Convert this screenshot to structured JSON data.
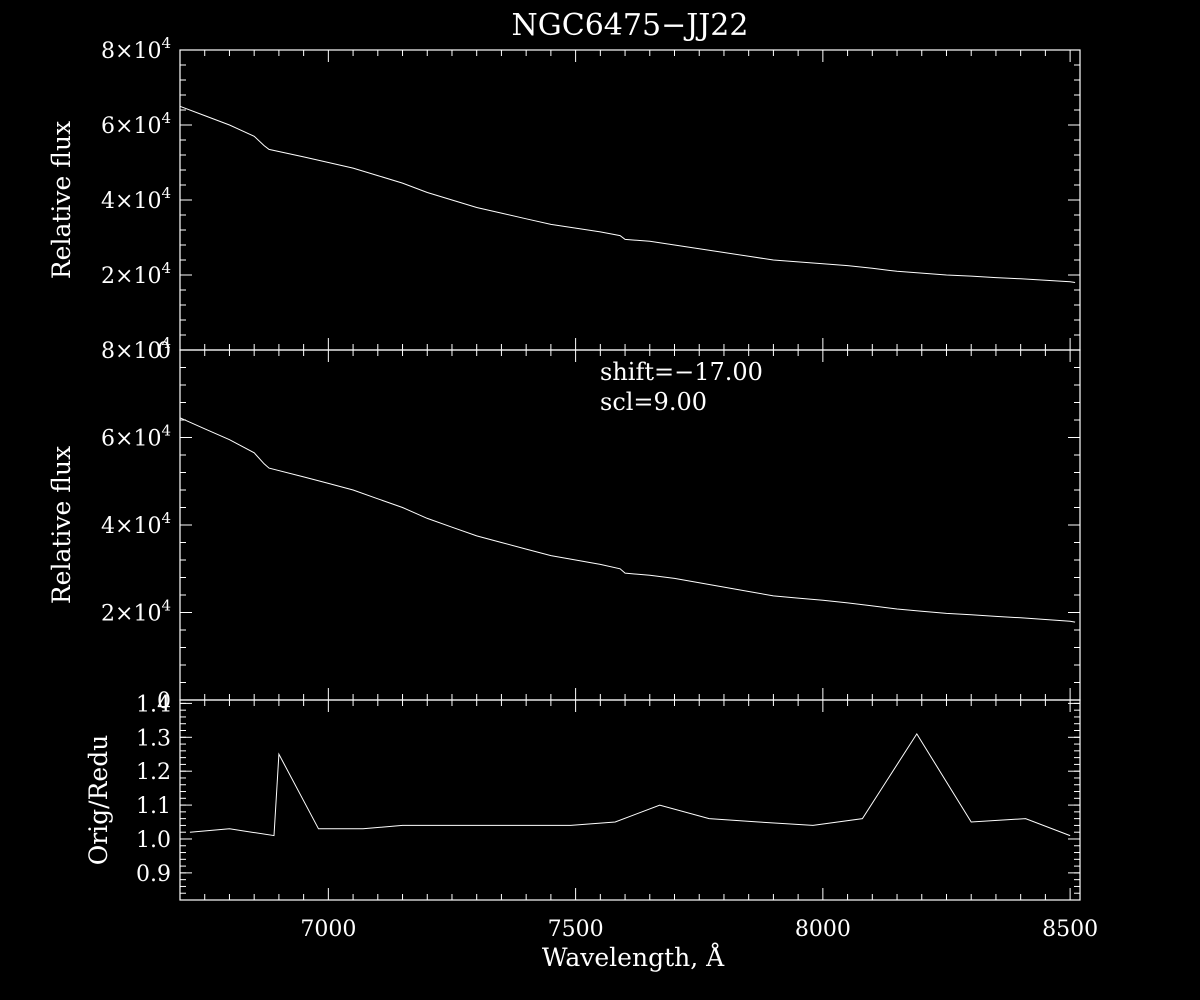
{
  "chart_data": {
    "title": "NGC6475−JJ22",
    "type": "line",
    "xlabel": "Wavelength, Å",
    "xlim": [
      6700,
      8520
    ],
    "x_ticks": [
      "7000",
      "7500",
      "8000",
      "8500"
    ],
    "x_tick_values": [
      7000,
      7500,
      8000,
      8500
    ],
    "panels": [
      {
        "name": "top",
        "ylabel": "Relative flux",
        "ylim": [
          0,
          80000
        ],
        "y_ticks": [
          {
            "value": 0,
            "mantissa": "0",
            "exp": ""
          },
          {
            "value": 20000,
            "mantissa": "2×10",
            "exp": "4"
          },
          {
            "value": 40000,
            "mantissa": "4×10",
            "exp": "4"
          },
          {
            "value": 60000,
            "mantissa": "6×10",
            "exp": "4"
          },
          {
            "value": 80000,
            "mantissa": "8×10",
            "exp": "4"
          }
        ],
        "series": [
          {
            "x": [
              6700,
              6750,
              6800,
              6850,
              6870,
              6880,
              6950,
              7000,
              7050,
              7100,
              7150,
              7200,
              7250,
              7300,
              7350,
              7400,
              7450,
              7500,
              7550,
              7590,
              7600,
              7650,
              7700,
              7750,
              7800,
              7850,
              7900,
              7950,
              8000,
              8050,
              8100,
              8150,
              8200,
              8250,
              8300,
              8350,
              8400,
              8450,
              8500,
              8510
            ],
            "y": [
              65000,
              62500,
              60000,
              57000,
              54500,
              53500,
              51500,
              50000,
              48500,
              46500,
              44500,
              42000,
              40000,
              38000,
              36500,
              35000,
              33500,
              32500,
              31500,
              30500,
              29500,
              29000,
              28000,
              27000,
              26000,
              25000,
              24000,
              23500,
              23000,
              22500,
              21800,
              21000,
              20500,
              20000,
              19700,
              19300,
              19000,
              18600,
              18200,
              18000
            ]
          }
        ]
      },
      {
        "name": "middle",
        "ylabel": "Relative flux",
        "ylim": [
          0,
          80000
        ],
        "y_ticks": [
          {
            "value": 0,
            "mantissa": "0",
            "exp": ""
          },
          {
            "value": 20000,
            "mantissa": "2×10",
            "exp": "4"
          },
          {
            "value": 40000,
            "mantissa": "4×10",
            "exp": "4"
          },
          {
            "value": 60000,
            "mantissa": "6×10",
            "exp": "4"
          },
          {
            "value": 80000,
            "mantissa": "8×10",
            "exp": "4"
          }
        ],
        "annotations": [
          "shift=−17.00",
          "scl=9.00"
        ],
        "series": [
          {
            "x": [
              6700,
              6750,
              6800,
              6850,
              6870,
              6880,
              6950,
              7000,
              7050,
              7100,
              7150,
              7200,
              7250,
              7300,
              7350,
              7400,
              7450,
              7500,
              7550,
              7590,
              7600,
              7650,
              7700,
              7750,
              7800,
              7850,
              7900,
              7950,
              8000,
              8050,
              8100,
              8150,
              8200,
              8250,
              8300,
              8350,
              8400,
              8450,
              8500,
              8510
            ],
            "y": [
              64500,
              62000,
              59500,
              56500,
              54000,
              53000,
              51000,
              49500,
              48000,
              46000,
              44000,
              41500,
              39500,
              37500,
              36000,
              34500,
              33000,
              32000,
              31000,
              30000,
              29000,
              28500,
              27800,
              26800,
              25800,
              24800,
              23800,
              23300,
              22800,
              22200,
              21500,
              20800,
              20300,
              19800,
              19500,
              19100,
              18800,
              18400,
              18000,
              17800
            ]
          }
        ]
      },
      {
        "name": "bottom",
        "ylabel": "Orig/Redu",
        "ylim": [
          0.82,
          1.41
        ],
        "y_ticks": [
          {
            "value": 0.9,
            "mantissa": "0.9",
            "exp": ""
          },
          {
            "value": 1.0,
            "mantissa": "1.0",
            "exp": ""
          },
          {
            "value": 1.1,
            "mantissa": "1.1",
            "exp": ""
          },
          {
            "value": 1.2,
            "mantissa": "1.2",
            "exp": ""
          },
          {
            "value": 1.3,
            "mantissa": "1.3",
            "exp": ""
          },
          {
            "value": 1.4,
            "mantissa": "1.4",
            "exp": ""
          }
        ],
        "series": [
          {
            "x": [
              6720,
              6800,
              6890,
              6900,
              6980,
              7070,
              7150,
              7230,
              7310,
              7400,
              7490,
              7580,
              7670,
              7770,
              7870,
              7980,
              8080,
              8190,
              8300,
              8410,
              8500
            ],
            "y": [
              1.02,
              1.03,
              1.01,
              1.25,
              1.03,
              1.03,
              1.04,
              1.04,
              1.04,
              1.04,
              1.04,
              1.05,
              1.1,
              1.06,
              1.05,
              1.04,
              1.06,
              1.31,
              1.05,
              1.06,
              1.01
            ]
          }
        ]
      }
    ]
  }
}
